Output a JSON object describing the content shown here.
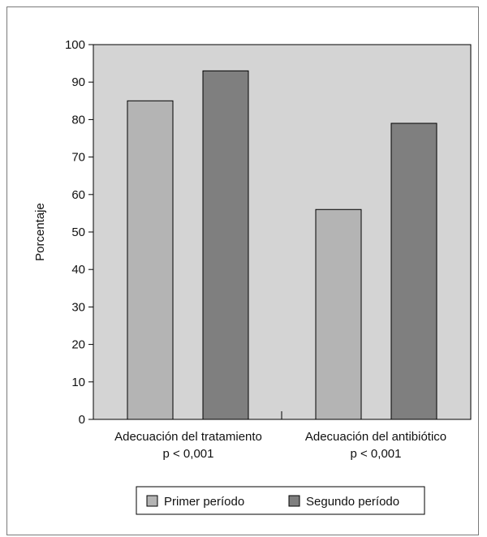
{
  "chart_data": {
    "type": "bar",
    "categories": [
      {
        "line1": "Adecuación del tratamiento",
        "line2": "p < 0,001"
      },
      {
        "line1": "Adecuación del antibiótico",
        "line2": "p < 0,001"
      }
    ],
    "series": [
      {
        "name": "Primer período",
        "values": [
          85,
          56
        ],
        "color": "#b4b4b4"
      },
      {
        "name": "Segundo período",
        "values": [
          93,
          79
        ],
        "color": "#7f7f7f"
      }
    ],
    "ylabel": "Porcentaje",
    "ylim": [
      0,
      100
    ],
    "yticks": [
      0,
      10,
      20,
      30,
      40,
      50,
      60,
      70,
      80,
      90,
      100
    ],
    "plot_background": "#d4d4d4",
    "grid": false,
    "legend_position": "bottom-center"
  }
}
